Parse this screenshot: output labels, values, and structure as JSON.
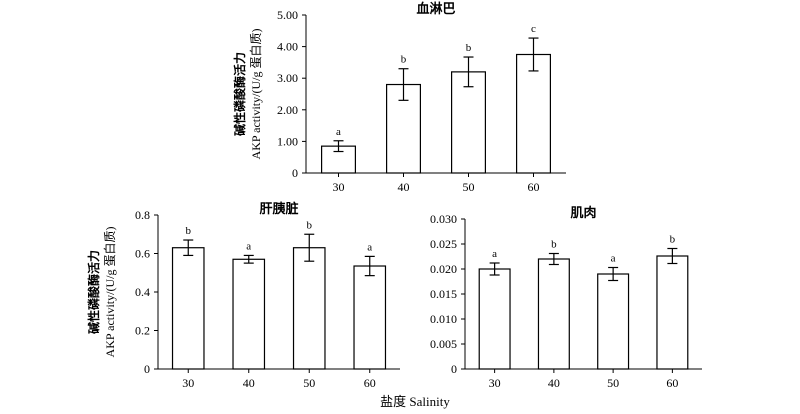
{
  "figure": {
    "y_label_line1": "碱性磷酸酶活力",
    "y_label_line2": "AKP activity/(U/g 蛋白质)",
    "x_label": "盐度 Salinity"
  },
  "chart_data": [
    {
      "type": "bar",
      "title": "血淋巴",
      "categories": [
        "30",
        "40",
        "50",
        "60"
      ],
      "values": [
        0.85,
        2.8,
        3.2,
        3.75
      ],
      "errors": [
        0.17,
        0.5,
        0.47,
        0.52
      ],
      "significance": [
        "a",
        "b",
        "b",
        "c"
      ],
      "ylim": [
        0,
        5
      ],
      "yticks": [
        "0",
        "1.00",
        "2.00",
        "3.00",
        "4.00",
        "5.00"
      ],
      "ytick_values": [
        0,
        1,
        2,
        3,
        4,
        5
      ],
      "grid": false
    },
    {
      "type": "bar",
      "title": "肝胰脏",
      "categories": [
        "30",
        "40",
        "50",
        "60"
      ],
      "values": [
        0.63,
        0.57,
        0.63,
        0.535
      ],
      "errors": [
        0.04,
        0.02,
        0.07,
        0.05
      ],
      "significance": [
        "b",
        "a",
        "b",
        "a"
      ],
      "ylim": [
        0,
        0.8
      ],
      "yticks": [
        "0",
        "0.2",
        "0.4",
        "0.6",
        "0.8"
      ],
      "ytick_values": [
        0,
        0.2,
        0.4,
        0.6,
        0.8
      ],
      "grid": false
    },
    {
      "type": "bar",
      "title": "肌肉",
      "categories": [
        "30",
        "40",
        "50",
        "60"
      ],
      "values": [
        0.02,
        0.022,
        0.019,
        0.0226
      ],
      "errors": [
        0.0012,
        0.0011,
        0.0013,
        0.0015
      ],
      "significance": [
        "a",
        "b",
        "a",
        "b"
      ],
      "ylim": [
        0,
        0.03
      ],
      "yticks": [
        "0",
        "0.005",
        "0.010",
        "0.015",
        "0.020",
        "0.025",
        "0.030"
      ],
      "ytick_values": [
        0,
        0.005,
        0.01,
        0.015,
        0.02,
        0.025,
        0.03
      ],
      "grid": false
    }
  ]
}
